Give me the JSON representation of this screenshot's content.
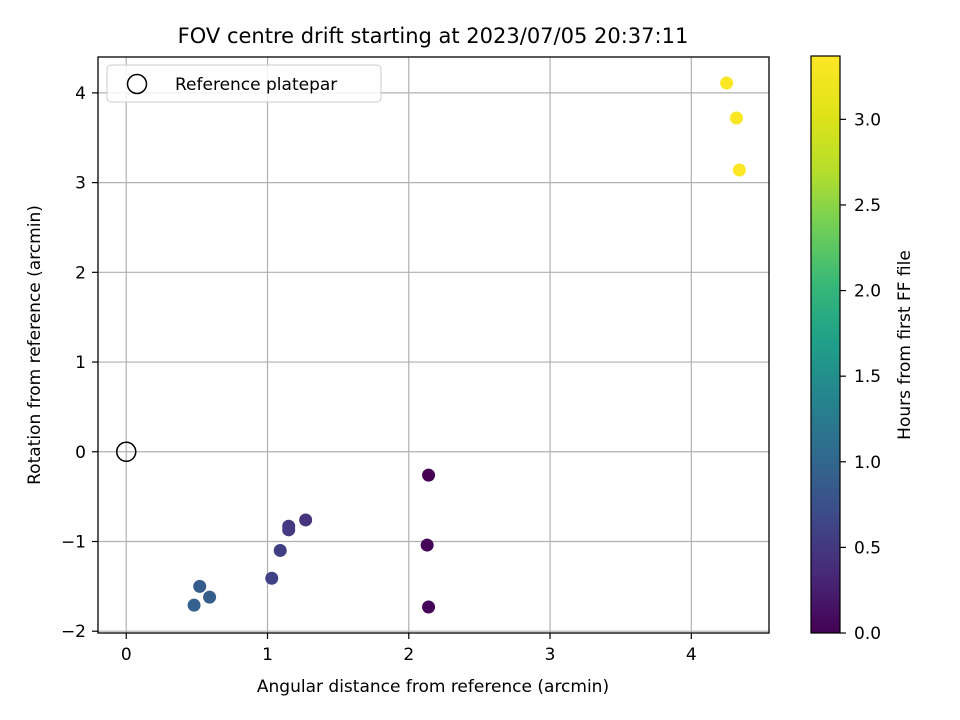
{
  "chart_data": {
    "type": "scatter",
    "title": "FOV centre drift starting at 2023/07/05 20:37:11",
    "xlabel": "Angular distance from reference (arcmin)",
    "ylabel": "Rotation from reference (arcmin)",
    "xlim": [
      -0.2,
      4.55
    ],
    "ylim": [
      -2.02,
      4.4
    ],
    "xticks": [
      0,
      1,
      2,
      3,
      4
    ],
    "yticks": [
      -2,
      -1,
      0,
      1,
      2,
      3,
      4
    ],
    "xtick_labels": [
      "0",
      "1",
      "2",
      "3",
      "4"
    ],
    "ytick_labels": [
      "−2",
      "−1",
      "0",
      "1",
      "2",
      "3",
      "4"
    ],
    "grid": true,
    "legend": {
      "placement": "upper-left",
      "entries": [
        {
          "label": "Reference platepar",
          "marker": "open-circle",
          "x": 0,
          "y": 0
        }
      ]
    },
    "colorbar": {
      "label": "Hours from first FF file",
      "colormap": "viridis",
      "range": [
        0.0,
        3.37
      ],
      "ticks": [
        0.0,
        0.5,
        1.0,
        1.5,
        2.0,
        2.5,
        3.0
      ],
      "tick_labels": [
        "0.0",
        "0.5",
        "1.0",
        "1.5",
        "2.0",
        "2.5",
        "3.0"
      ]
    },
    "points": [
      {
        "x": 2.14,
        "y": -0.26,
        "hours": 0.0
      },
      {
        "x": 2.13,
        "y": -1.04,
        "hours": 0.02
      },
      {
        "x": 2.14,
        "y": -1.73,
        "hours": 0.03
      },
      {
        "x": 1.27,
        "y": -0.76,
        "hours": 0.45
      },
      {
        "x": 1.15,
        "y": -0.83,
        "hours": 0.5
      },
      {
        "x": 1.15,
        "y": -0.87,
        "hours": 0.52
      },
      {
        "x": 1.09,
        "y": -1.1,
        "hours": 0.57
      },
      {
        "x": 1.03,
        "y": -1.41,
        "hours": 0.6
      },
      {
        "x": 0.52,
        "y": -1.5,
        "hours": 0.88
      },
      {
        "x": 0.59,
        "y": -1.62,
        "hours": 0.9
      },
      {
        "x": 0.48,
        "y": -1.71,
        "hours": 0.93
      },
      {
        "x": 4.25,
        "y": 4.11,
        "hours": 3.34
      },
      {
        "x": 4.32,
        "y": 3.72,
        "hours": 3.35
      },
      {
        "x": 4.34,
        "y": 3.14,
        "hours": 3.37
      }
    ]
  }
}
